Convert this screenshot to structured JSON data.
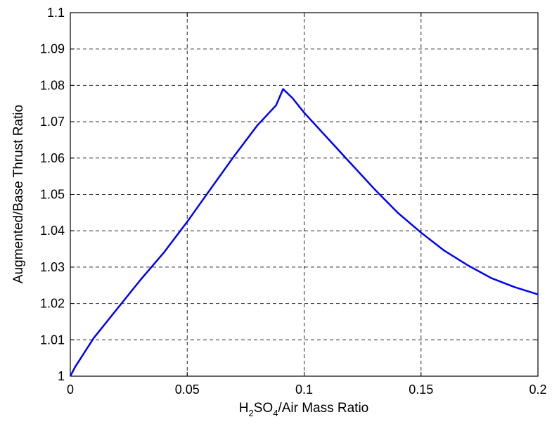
{
  "chart_data": {
    "type": "line",
    "title": "",
    "xlabel": {
      "prefix": "H",
      "sub1": "2",
      "mid": "SO",
      "sub2": "4",
      "suffix": "/Air Mass Ratio"
    },
    "ylabel": "Augmented/Base Thrust Ratio",
    "xlim": [
      0,
      0.2
    ],
    "ylim": [
      1,
      1.1
    ],
    "x_ticks": [
      "0",
      "0.05",
      "0.1",
      "0.15",
      "0.2"
    ],
    "y_ticks": [
      "1",
      "1.01",
      "1.02",
      "1.03",
      "1.04",
      "1.05",
      "1.06",
      "1.07",
      "1.08",
      "1.09",
      "1.1"
    ],
    "grid": true,
    "series": [
      {
        "color": "#0000ff",
        "x": [
          0,
          0.002,
          0.01,
          0.02,
          0.03,
          0.04,
          0.05,
          0.06,
          0.07,
          0.08,
          0.088,
          0.091,
          0.095,
          0.1,
          0.11,
          0.12,
          0.13,
          0.14,
          0.15,
          0.16,
          0.17,
          0.18,
          0.19,
          0.2
        ],
        "y": [
          1.0,
          1.0025,
          1.0105,
          1.0185,
          1.0265,
          1.034,
          1.0425,
          1.0515,
          1.0605,
          1.069,
          1.0745,
          1.079,
          1.0765,
          1.0725,
          1.0655,
          1.0585,
          1.0515,
          1.045,
          1.0395,
          1.0345,
          1.0305,
          1.027,
          1.0245,
          1.0225
        ]
      }
    ]
  }
}
